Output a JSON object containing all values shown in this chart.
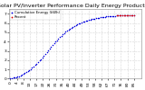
{
  "title": "Solar PV/Inverter Performance Daily Energy Production",
  "bg_color": "#ffffff",
  "plot_bg_color": "#ffffff",
  "grid_color": "#aaaaaa",
  "blue_dots_x": [
    0,
    1,
    2,
    3,
    4,
    5,
    6,
    7,
    8,
    9,
    10,
    11,
    12,
    13,
    14,
    15,
    16,
    17,
    18,
    19,
    20,
    21,
    22,
    23,
    24,
    25,
    26,
    27,
    28,
    29,
    30,
    31,
    32,
    33,
    34,
    35,
    36,
    37,
    38,
    39,
    40,
    41,
    42,
    43,
    44,
    45,
    46,
    47,
    48,
    49,
    50,
    51,
    52,
    53,
    54,
    55,
    56,
    57,
    58,
    59,
    60,
    61,
    62,
    63,
    64,
    65,
    66,
    67,
    68,
    69,
    70,
    71,
    72,
    73,
    74,
    75,
    76,
    77,
    78,
    79,
    80,
    81,
    82,
    83,
    84,
    85
  ],
  "blue_dots_y": [
    0.05,
    0.08,
    0.1,
    0.15,
    0.18,
    0.22,
    0.27,
    0.32,
    0.4,
    0.48,
    0.58,
    0.68,
    0.8,
    0.92,
    1.05,
    1.18,
    1.32,
    1.47,
    1.62,
    1.78,
    1.95,
    2.12,
    2.3,
    2.48,
    2.67,
    2.86,
    3.05,
    3.24,
    3.43,
    3.62,
    3.8,
    3.98,
    4.15,
    4.32,
    4.48,
    4.63,
    4.78,
    4.92,
    5.05,
    5.17,
    5.29,
    5.4,
    5.5,
    5.6,
    5.69,
    5.78,
    5.86,
    5.93,
    6.0,
    6.07,
    6.13,
    6.19,
    6.24,
    6.29,
    6.34,
    6.38,
    6.42,
    6.46,
    6.5,
    6.53,
    6.56,
    6.59,
    6.62,
    6.65,
    6.67,
    6.69,
    6.71,
    6.73,
    6.75,
    6.76,
    6.77,
    6.78,
    6.79,
    6.8,
    6.81,
    6.82,
    6.83,
    6.83,
    6.84,
    6.84,
    6.85,
    6.85,
    6.85,
    6.86,
    6.86,
    6.86
  ],
  "red_dots_x": [
    73,
    74,
    75,
    76,
    77,
    78,
    79,
    80,
    81,
    82,
    83,
    84,
    85
  ],
  "red_dots_y": [
    6.8,
    6.81,
    6.82,
    6.83,
    6.83,
    6.84,
    6.84,
    6.85,
    6.85,
    6.85,
    6.86,
    6.86,
    6.86
  ],
  "ylim": [
    0,
    7.5
  ],
  "xlim": [
    -1,
    90
  ],
  "ytick_labels": [
    "0",
    "1",
    "2",
    "3",
    "4",
    "5",
    "6",
    "7"
  ],
  "ytick_vals": [
    0,
    1,
    2,
    3,
    4,
    5,
    6,
    7
  ],
  "legend_blue": "Cumulative Energy (kWh)",
  "legend_red": "Recent",
  "title_fontsize": 4.5,
  "tick_fontsize": 3.2,
  "legend_fontsize": 2.8,
  "dot_size": 1.2,
  "text_color": "#000000",
  "xtick_count": 20
}
